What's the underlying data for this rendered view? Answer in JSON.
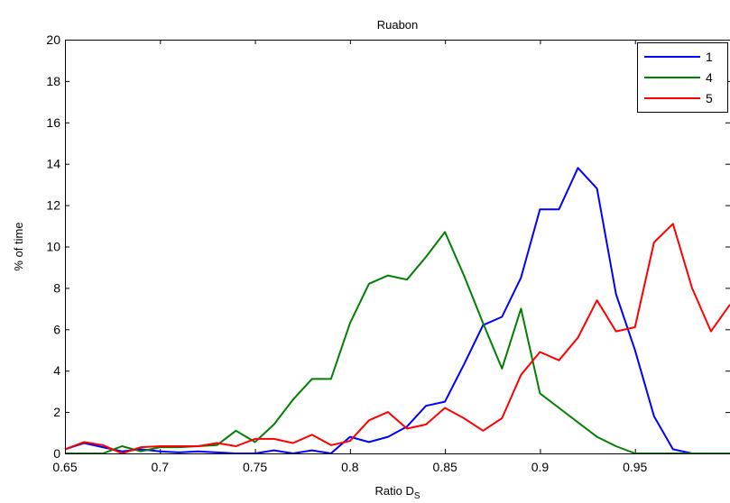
{
  "chart_data": {
    "type": "line",
    "title": "Ruabon",
    "xlabel": "Ratio D",
    "xlabel_subscript": "S",
    "ylabel": "% of time",
    "xlim": [
      0.65,
      1.0
    ],
    "ylim": [
      0,
      20
    ],
    "xticks": [
      0.65,
      0.7,
      0.75,
      0.8,
      0.85,
      0.9,
      0.95
    ],
    "xtick_labels": [
      "0.65",
      "0.7",
      "0.75",
      "0.8",
      "0.85",
      "0.9",
      "0.95"
    ],
    "yticks": [
      0,
      2,
      4,
      6,
      8,
      10,
      12,
      14,
      16,
      18,
      20
    ],
    "ytick_labels": [
      "0",
      "2",
      "4",
      "6",
      "8",
      "10",
      "12",
      "14",
      "16",
      "18",
      "20"
    ],
    "grid": false,
    "legend_position": "top-right",
    "x": [
      0.65,
      0.66,
      0.67,
      0.68,
      0.69,
      0.7,
      0.71,
      0.72,
      0.73,
      0.74,
      0.75,
      0.76,
      0.77,
      0.78,
      0.79,
      0.8,
      0.81,
      0.82,
      0.83,
      0.84,
      0.85,
      0.86,
      0.87,
      0.88,
      0.89,
      0.9,
      0.91,
      0.92,
      0.93,
      0.94,
      0.95,
      0.96,
      0.97,
      0.98,
      0.99,
      1.0
    ],
    "series": [
      {
        "name": "1",
        "color": "#0000ff",
        "values": [
          0.2,
          0.5,
          0.3,
          0.1,
          0.2,
          0.1,
          0.05,
          0.1,
          0.05,
          0.0,
          0.0,
          0.15,
          0.0,
          0.15,
          0.0,
          0.8,
          0.55,
          0.8,
          1.3,
          2.3,
          2.5,
          4.3,
          6.2,
          6.6,
          8.5,
          11.8,
          11.8,
          13.8,
          12.8,
          7.7,
          5.0,
          1.8,
          0.2,
          0.0,
          0.0,
          0.0
        ]
      },
      {
        "name": "4",
        "color": "#008000",
        "values": [
          0.0,
          0.0,
          0.0,
          0.35,
          0.1,
          0.3,
          0.3,
          0.35,
          0.4,
          1.1,
          0.55,
          1.4,
          2.6,
          3.6,
          3.6,
          6.3,
          8.2,
          8.6,
          8.4,
          9.5,
          10.7,
          8.6,
          6.3,
          4.1,
          7.0,
          2.9,
          2.2,
          1.5,
          0.8,
          0.35,
          0.0,
          0.0,
          0.0,
          0.0,
          0.0,
          0.0
        ]
      },
      {
        "name": "5",
        "color": "#ff0000",
        "values": [
          0.2,
          0.55,
          0.4,
          0.0,
          0.3,
          0.35,
          0.35,
          0.35,
          0.5,
          0.35,
          0.7,
          0.7,
          0.5,
          0.9,
          0.4,
          0.6,
          1.6,
          2.0,
          1.2,
          1.4,
          2.2,
          1.7,
          1.1,
          1.7,
          3.8,
          4.9,
          4.5,
          5.6,
          7.4,
          5.9,
          6.1,
          10.2,
          11.1,
          8.0,
          5.9,
          7.2
        ]
      }
    ]
  }
}
